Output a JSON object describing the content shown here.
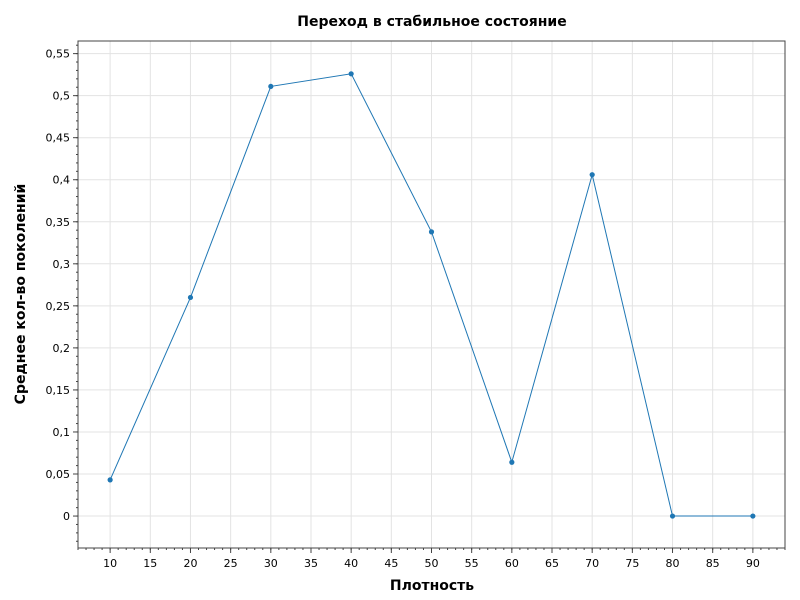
{
  "chart_data": {
    "type": "line",
    "title": "Переход в стабильное состояние",
    "xlabel": "Плотность",
    "ylabel": "Среднее кол-во поколений",
    "xlim": [
      6,
      94
    ],
    "ylim": [
      -0.038,
      0.565
    ],
    "x_ticks": [
      10,
      15,
      20,
      25,
      30,
      35,
      40,
      45,
      50,
      55,
      60,
      65,
      70,
      75,
      80,
      85,
      90
    ],
    "x_tick_labels": [
      "10",
      "15",
      "20",
      "25",
      "30",
      "35",
      "40",
      "45",
      "50",
      "55",
      "60",
      "65",
      "70",
      "75",
      "80",
      "85",
      "90"
    ],
    "y_ticks": [
      0,
      0.05,
      0.1,
      0.15,
      0.2,
      0.25,
      0.3,
      0.35,
      0.4,
      0.45,
      0.5,
      0.55
    ],
    "y_tick_labels": [
      "0",
      "0,05",
      "0,1",
      "0,15",
      "0,2",
      "0,25",
      "0,3",
      "0,35",
      "0,4",
      "0,45",
      "0,5",
      "0,55"
    ],
    "grid": true,
    "legend": "none",
    "series": [
      {
        "color": "#1f77b4",
        "x": [
          10,
          20,
          30,
          40,
          50,
          60,
          70,
          80,
          90
        ],
        "y": [
          0.043,
          0.26,
          0.511,
          0.526,
          0.338,
          0.064,
          0.406,
          0.0,
          0.0
        ]
      }
    ]
  }
}
